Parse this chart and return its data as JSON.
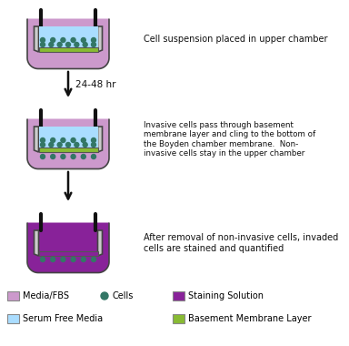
{
  "bg_color": "#ffffff",
  "purple_light": "#cc99cc",
  "purple_dark": "#8833aa",
  "blue_light": "#aaddff",
  "green_membrane": "#88bb33",
  "cell_color": "#337766",
  "stain_color": "#882299",
  "text_color": "#111111",
  "wall_color": "#444444",
  "insert_wall_color": "#555555",
  "step1_text": "Cell suspension placed in upper chamber",
  "step2_text": "Invasive cells pass through basement\nmembrane layer and cling to the bottom of\nthe Boyden chamber membrane.  Non-\ninvasive cells stay in the upper chamber",
  "step3_text": "After removal of non-invasive cells, invaded\ncells are stained and quantified",
  "arrow_label": "24-48 hr"
}
